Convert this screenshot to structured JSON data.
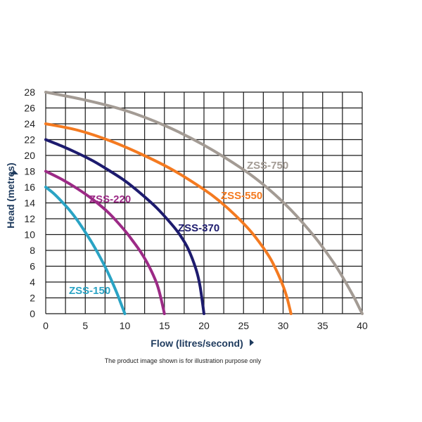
{
  "chart_data": {
    "type": "line",
    "xlabel": "Flow (litres/second)",
    "ylabel": "Head (metres)",
    "xlim": [
      0,
      40
    ],
    "ylim": [
      0,
      28
    ],
    "x_ticks": [
      0,
      5,
      10,
      15,
      20,
      25,
      30,
      35,
      40
    ],
    "y_ticks": [
      0,
      2,
      4,
      6,
      8,
      10,
      12,
      14,
      16,
      18,
      20,
      22,
      24,
      26,
      28
    ],
    "grid": true,
    "series": [
      {
        "name": "ZSS-150",
        "color": "#2aa3c4",
        "x": [
          0,
          1,
          2,
          3,
          4,
          5,
          6,
          7,
          8,
          9,
          9.5,
          10
        ],
        "y": [
          16,
          15.2,
          14.2,
          13.1,
          11.8,
          10.3,
          8.7,
          6.9,
          4.9,
          2.6,
          1.3,
          0
        ]
      },
      {
        "name": "ZSS-220",
        "color": "#9c2a86",
        "x": [
          0,
          2,
          4,
          6,
          8,
          10,
          11,
          12,
          13,
          14,
          14.5,
          15
        ],
        "y": [
          18,
          17,
          15.8,
          14.4,
          12.7,
          10.5,
          9.2,
          7.8,
          6.1,
          3.9,
          2.2,
          0
        ]
      },
      {
        "name": "ZSS-370",
        "color": "#1d1b6e",
        "x": [
          0,
          2,
          4,
          6,
          8,
          10,
          12,
          14,
          16,
          17,
          18,
          19,
          19.5,
          20
        ],
        "y": [
          22,
          21.2,
          20.3,
          19.3,
          18.1,
          16.8,
          15.2,
          13.4,
          11.2,
          9.9,
          8.2,
          5.6,
          3.5,
          0
        ]
      },
      {
        "name": "ZSS-550",
        "color": "#f47a20",
        "x": [
          0,
          4,
          8,
          12,
          16,
          20,
          22,
          24,
          26,
          28,
          29,
          30,
          30.5,
          31
        ],
        "y": [
          24,
          23.2,
          21.9,
          20.2,
          18.2,
          15.7,
          14.2,
          12.4,
          10.3,
          7.6,
          5.8,
          3.5,
          2,
          0
        ]
      },
      {
        "name": "ZSS-750",
        "color": "#a39b94",
        "x": [
          0,
          5,
          10,
          15,
          20,
          25,
          28,
          31,
          34,
          36,
          37,
          38,
          39,
          39.5,
          40
        ],
        "y": [
          28,
          27,
          25.7,
          23.8,
          21.3,
          18.2,
          15.9,
          13.1,
          9.7,
          7,
          5.5,
          3.8,
          2,
          1,
          0
        ]
      }
    ]
  },
  "footnote": "The product image shown is for illustration purpose only"
}
